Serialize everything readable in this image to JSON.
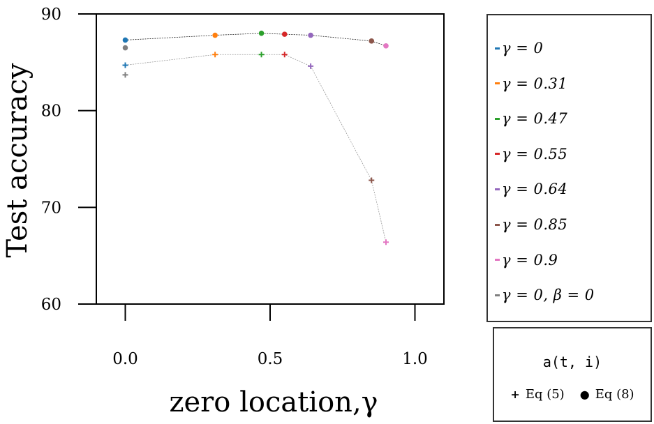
{
  "chart_data": {
    "type": "scatter",
    "xlabel": "zero location,γ",
    "ylabel": "Test accuracy",
    "xlim": [
      -0.1,
      1.1
    ],
    "ylim": [
      60,
      90
    ],
    "xticks": [
      0.0,
      0.5,
      1.0
    ],
    "xtick_labels": [
      "0.0",
      "0.5",
      "1.0"
    ],
    "yticks": [
      60,
      70,
      80,
      90
    ],
    "ytick_labels": [
      "60",
      "70",
      "80",
      "90"
    ],
    "series": [
      {
        "name": "Eq (8)",
        "marker": "dot",
        "line_color": "#222222",
        "x": [
          0,
          0.31,
          0.47,
          0.55,
          0.64,
          0.85,
          0.9
        ],
        "y": [
          87.3,
          87.8,
          88.0,
          87.9,
          87.8,
          87.2,
          86.7
        ],
        "colors": [
          "#1f77b4",
          "#ff7f0e",
          "#2ca02c",
          "#d62728",
          "#9467bd",
          "#8c564b",
          "#e377c2"
        ]
      },
      {
        "name": "Eq (5)",
        "marker": "plus",
        "line_color": "#999999",
        "x": [
          0,
          0.31,
          0.47,
          0.55,
          0.64,
          0.85,
          0.9
        ],
        "y": [
          84.7,
          85.8,
          85.8,
          85.8,
          84.6,
          72.8,
          66.4
        ],
        "colors": [
          "#1f77b4",
          "#ff7f0e",
          "#2ca02c",
          "#d62728",
          "#9467bd",
          "#8c564b",
          "#e377c2"
        ]
      }
    ],
    "baseline_points": [
      {
        "label": "γ = 0, β = 0",
        "marker": "dot",
        "x": 0,
        "y": 86.5,
        "color": "#7f7f7f"
      },
      {
        "label": "γ = 0, β = 0",
        "marker": "plus",
        "x": 0,
        "y": 83.7,
        "color": "#7f7f7f"
      }
    ],
    "legend": {
      "position": "right",
      "entries": [
        {
          "label": "γ = 0",
          "color": "#1f77b4"
        },
        {
          "label": "γ = 0.31",
          "color": "#ff7f0e"
        },
        {
          "label": "γ = 0.47",
          "color": "#2ca02c"
        },
        {
          "label": "γ = 0.55",
          "color": "#d62728"
        },
        {
          "label": "γ = 0.64",
          "color": "#9467bd"
        },
        {
          "label": "γ = 0.85",
          "color": "#8c564b"
        },
        {
          "label": "γ = 0.9",
          "color": "#e377c2"
        },
        {
          "label": "γ = 0, β = 0",
          "color": "#7f7f7f"
        }
      ]
    },
    "marker_legend": {
      "title": "a(t, i)",
      "plus_label": "Eq (5)",
      "dot_label": "Eq (8)"
    }
  }
}
